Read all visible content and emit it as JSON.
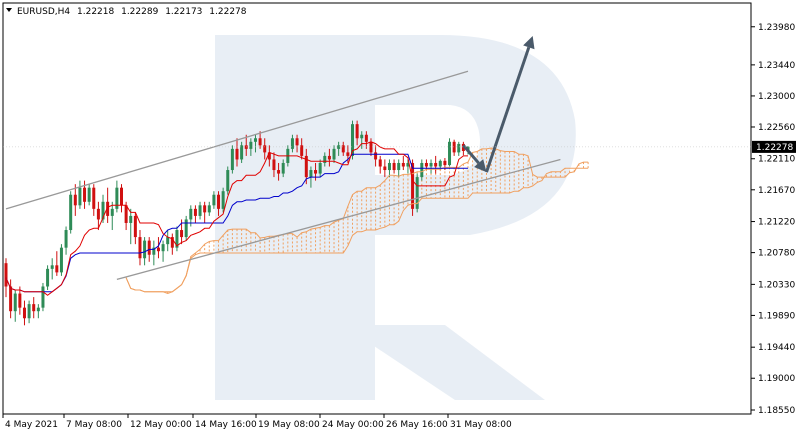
{
  "header": {
    "symbol": "EURUSD,H4",
    "open": "1.22218",
    "high": "1.22289",
    "low": "1.22173",
    "close": "1.22278",
    "dropdown_icon": "triangle-down-icon"
  },
  "colors": {
    "bull": "#2e8b57",
    "bear": "#d01010",
    "tenkan": "#e00000",
    "kijun": "#0000cc",
    "cloud": "#f0a060",
    "channel": "#999999",
    "arrow": "#4a5a6a",
    "grid": "#e6e6e6",
    "watermark": "#e8eef5",
    "price_label_bg": "#000000"
  },
  "chart_data": {
    "type": "candlestick",
    "symbol": "EURUSD",
    "timeframe": "H4",
    "ylim": [
      1.1855,
      1.2409
    ],
    "y_ticks": [
      "1.23980",
      "1.23440",
      "1.23000",
      "1.22560",
      "1.22110",
      "1.21670",
      "1.21220",
      "1.20780",
      "1.20330",
      "1.19890",
      "1.19440",
      "1.19000",
      "1.18550"
    ],
    "x_ticks": [
      "4 May 2021",
      "7 May 08:00",
      "12 May 00:00",
      "14 May 16:00",
      "19 May 08:00",
      "24 May 00:00",
      "26 May 16:00",
      "31 May 08:00"
    ],
    "current_price": "1.22278",
    "candles": [
      [
        1.2063,
        1.207,
        1.2015,
        1.203
      ],
      [
        1.203,
        1.204,
        1.1985,
        1.1995
      ],
      [
        1.1995,
        1.2025,
        1.198,
        1.202
      ],
      [
        1.202,
        1.203,
        1.199,
        1.2
      ],
      [
        1.2,
        1.201,
        1.1975,
        1.1985
      ],
      [
        1.1985,
        1.201,
        1.1978,
        1.2005
      ],
      [
        1.2005,
        1.2015,
        1.1985,
        1.1995
      ],
      [
        1.1995,
        1.2005,
        1.1985,
        1.2
      ],
      [
        1.2,
        1.2035,
        1.1995,
        1.203
      ],
      [
        1.203,
        1.206,
        1.2025,
        1.2055
      ],
      [
        1.2055,
        1.207,
        1.204,
        1.206
      ],
      [
        1.206,
        1.208,
        1.2045,
        1.205
      ],
      [
        1.205,
        1.209,
        1.2045,
        1.2085
      ],
      [
        1.2085,
        1.2115,
        1.2075,
        1.211
      ],
      [
        1.211,
        1.2165,
        1.2105,
        1.216
      ],
      [
        1.216,
        1.2175,
        1.213,
        1.2145
      ],
      [
        1.2145,
        1.218,
        1.214,
        1.217
      ],
      [
        1.217,
        1.218,
        1.214,
        1.215
      ],
      [
        1.215,
        1.2175,
        1.2145,
        1.217
      ],
      [
        1.217,
        1.2175,
        1.213,
        1.214
      ],
      [
        1.214,
        1.215,
        1.211,
        1.2125
      ],
      [
        1.2125,
        1.216,
        1.212,
        1.215
      ],
      [
        1.215,
        1.217,
        1.212,
        1.213
      ],
      [
        1.213,
        1.215,
        1.211,
        1.214
      ],
      [
        1.214,
        1.218,
        1.2135,
        1.217
      ],
      [
        1.217,
        1.2175,
        1.2135,
        1.2145
      ],
      [
        1.2145,
        1.215,
        1.211,
        1.212
      ],
      [
        1.212,
        1.214,
        1.209,
        1.213
      ],
      [
        1.213,
        1.2135,
        1.209,
        1.21
      ],
      [
        1.21,
        1.211,
        1.206,
        1.207
      ],
      [
        1.207,
        1.21,
        1.206,
        1.2095
      ],
      [
        1.2095,
        1.21,
        1.2065,
        1.2075
      ],
      [
        1.2075,
        1.2095,
        1.206,
        1.2085
      ],
      [
        1.2085,
        1.21,
        1.207,
        1.208
      ],
      [
        1.208,
        1.2095,
        1.2065,
        1.209
      ],
      [
        1.209,
        1.211,
        1.208,
        1.21
      ],
      [
        1.21,
        1.2105,
        1.2075,
        1.2085
      ],
      [
        1.2085,
        1.2115,
        1.208,
        1.211
      ],
      [
        1.211,
        1.2125,
        1.209,
        1.21
      ],
      [
        1.21,
        1.213,
        1.2095,
        1.2125
      ],
      [
        1.2125,
        1.2145,
        1.2115,
        1.214
      ],
      [
        1.214,
        1.2145,
        1.212,
        1.213
      ],
      [
        1.213,
        1.215,
        1.2125,
        1.2145
      ],
      [
        1.2145,
        1.215,
        1.212,
        1.2135
      ],
      [
        1.2135,
        1.215,
        1.213,
        1.2145
      ],
      [
        1.2145,
        1.2165,
        1.214,
        1.216
      ],
      [
        1.216,
        1.2165,
        1.213,
        1.214
      ],
      [
        1.214,
        1.217,
        1.2135,
        1.2165
      ],
      [
        1.2165,
        1.22,
        1.216,
        1.2195
      ],
      [
        1.2195,
        1.223,
        1.219,
        1.2225
      ],
      [
        1.2225,
        1.224,
        1.22,
        1.221
      ],
      [
        1.221,
        1.2235,
        1.2205,
        1.223
      ],
      [
        1.223,
        1.2245,
        1.2215,
        1.2225
      ],
      [
        1.2225,
        1.224,
        1.2215,
        1.2235
      ],
      [
        1.2235,
        1.2245,
        1.222,
        1.224
      ],
      [
        1.224,
        1.225,
        1.2225,
        1.223
      ],
      [
        1.223,
        1.224,
        1.221,
        1.222
      ],
      [
        1.222,
        1.223,
        1.22,
        1.221
      ],
      [
        1.221,
        1.222,
        1.2185,
        1.2195
      ],
      [
        1.2195,
        1.2205,
        1.218,
        1.219
      ],
      [
        1.219,
        1.221,
        1.2185,
        1.2205
      ],
      [
        1.2205,
        1.223,
        1.22,
        1.2225
      ],
      [
        1.2225,
        1.2245,
        1.222,
        1.224
      ],
      [
        1.224,
        1.2245,
        1.222,
        1.223
      ],
      [
        1.223,
        1.224,
        1.221,
        1.2215
      ],
      [
        1.2215,
        1.2225,
        1.2175,
        1.2185
      ],
      [
        1.2185,
        1.22,
        1.217,
        1.2195
      ],
      [
        1.2195,
        1.2205,
        1.218,
        1.219
      ],
      [
        1.219,
        1.221,
        1.2185,
        1.2205
      ],
      [
        1.2205,
        1.222,
        1.22,
        1.2215
      ],
      [
        1.2215,
        1.2225,
        1.22,
        1.221
      ],
      [
        1.221,
        1.223,
        1.2205,
        1.2225
      ],
      [
        1.2225,
        1.2235,
        1.2215,
        1.223
      ],
      [
        1.223,
        1.2235,
        1.2215,
        1.222
      ],
      [
        1.222,
        1.223,
        1.2205,
        1.2215
      ],
      [
        1.2215,
        1.2265,
        1.221,
        1.226
      ],
      [
        1.226,
        1.2265,
        1.223,
        1.224
      ],
      [
        1.224,
        1.225,
        1.2225,
        1.2245
      ],
      [
        1.2245,
        1.225,
        1.2225,
        1.2235
      ],
      [
        1.2235,
        1.224,
        1.2215,
        1.222
      ],
      [
        1.222,
        1.223,
        1.22,
        1.221
      ],
      [
        1.221,
        1.2215,
        1.219,
        1.22
      ],
      [
        1.22,
        1.221,
        1.2185,
        1.2195
      ],
      [
        1.2195,
        1.221,
        1.2185,
        1.2205
      ],
      [
        1.2205,
        1.221,
        1.219,
        1.2195
      ],
      [
        1.2195,
        1.221,
        1.2185,
        1.2205
      ],
      [
        1.2205,
        1.2215,
        1.2195,
        1.22
      ],
      [
        1.22,
        1.221,
        1.219,
        1.2205
      ],
      [
        1.2205,
        1.221,
        1.213,
        1.214
      ],
      [
        1.214,
        1.219,
        1.2135,
        1.2185
      ],
      [
        1.2185,
        1.221,
        1.218,
        1.2205
      ],
      [
        1.2205,
        1.221,
        1.2195,
        1.22
      ],
      [
        1.22,
        1.221,
        1.219,
        1.2205
      ],
      [
        1.2205,
        1.2215,
        1.219,
        1.22
      ],
      [
        1.22,
        1.221,
        1.2195,
        1.2208
      ],
      [
        1.2208,
        1.2212,
        1.2195,
        1.2202
      ],
      [
        1.2202,
        1.224,
        1.22,
        1.2235
      ],
      [
        1.2235,
        1.2238,
        1.2215,
        1.222
      ],
      [
        1.222,
        1.2235,
        1.2215,
        1.2232
      ],
      [
        1.2232,
        1.2235,
        1.2216,
        1.2222
      ],
      [
        1.2222,
        1.2229,
        1.2217,
        1.2228
      ]
    ],
    "annotations": {
      "channel_upper": [
        [
          0,
          1.214
        ],
        [
          100,
          1.2335
        ]
      ],
      "channel_lower": [
        [
          24,
          1.204
        ],
        [
          120,
          1.221
        ]
      ],
      "arrow_down": [
        [
          99,
          1.223
        ],
        [
          104,
          1.2192
        ]
      ],
      "arrow_up": [
        [
          104,
          1.2192
        ],
        [
          114,
          1.2385
        ]
      ]
    },
    "grid": true,
    "legend": "none"
  }
}
